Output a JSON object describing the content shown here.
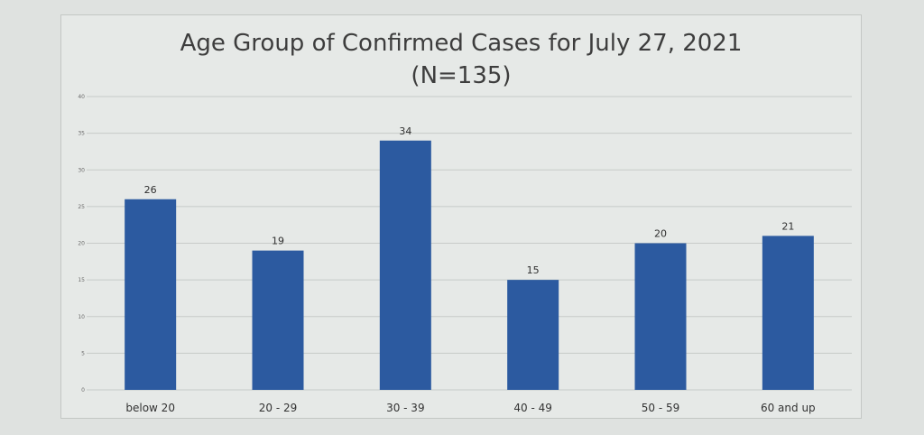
{
  "chart_data": {
    "type": "bar",
    "title": "Age Group of Confirmed Cases for July 27, 2021",
    "subtitle": "(N=135)",
    "categories": [
      "below 20",
      "20 - 29",
      "30 - 39",
      "40 - 49",
      "50 - 59",
      "60 and up"
    ],
    "values": [
      26,
      19,
      34,
      15,
      20,
      21
    ],
    "ylim": [
      0,
      40
    ],
    "yticks": [
      0,
      5,
      10,
      15,
      20,
      25,
      30,
      35,
      40
    ],
    "grid": true,
    "legend": "none",
    "color": "#2c5aa0"
  }
}
